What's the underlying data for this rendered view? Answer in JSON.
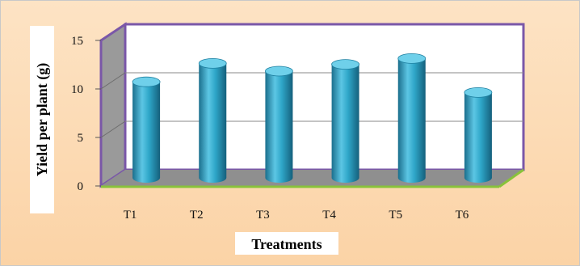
{
  "chart_data": {
    "type": "bar",
    "style": "3d-cylinder",
    "categories": [
      "T1",
      "T2",
      "T3",
      "T4",
      "T5",
      "T6"
    ],
    "values": [
      9.9,
      11.8,
      11.0,
      11.7,
      12.3,
      8.8
    ],
    "title": "",
    "xlabel": "Treatments",
    "ylabel": "Yield per plant (g)",
    "ylim": [
      0,
      15
    ],
    "yticks": [
      0,
      5,
      10,
      15
    ],
    "grid": true,
    "legend": "none",
    "colors": {
      "bar": "#2a9ec0",
      "bar_top": "#6fd0ea",
      "wall": "#ffffff",
      "side_wall": "#9a9a9a",
      "floor": "#8f8f8f",
      "wall_border": "#7a57a8",
      "floor_edge": "#88c23b",
      "background": "#fbd9b0"
    }
  }
}
